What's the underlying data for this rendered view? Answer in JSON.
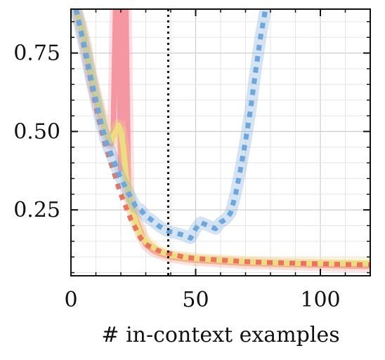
{
  "chart_data": {
    "type": "line",
    "title": "",
    "xlabel": "# in-context examples",
    "ylabel": "",
    "xlim": [
      0,
      120
    ],
    "ylim": [
      0.04,
      0.89
    ],
    "xticks": [
      {
        "value": 0,
        "label": "0"
      },
      {
        "value": 50,
        "label": "50"
      },
      {
        "value": 100,
        "label": "100"
      }
    ],
    "yticks": [
      {
        "value": 0.25,
        "label": "0.25"
      },
      {
        "value": 0.5,
        "label": "0.50"
      },
      {
        "value": 0.75,
        "label": "0.75"
      }
    ],
    "grid": true,
    "legend": "none",
    "vline": {
      "x": 39,
      "style": "dotted",
      "color": "#111111"
    },
    "series": [
      {
        "color": "#f497a3",
        "style": "solid",
        "band": true,
        "x": [
          2,
          4,
          6,
          8,
          10,
          12,
          14,
          16,
          17,
          18,
          19,
          20,
          21,
          22,
          23,
          24,
          26,
          28,
          30,
          33,
          36,
          40,
          45,
          50,
          60,
          70,
          80,
          90,
          100,
          110,
          120
        ],
        "y": [
          0.89,
          0.84,
          0.77,
          0.68,
          0.61,
          0.55,
          0.5,
          0.46,
          0.5,
          0.92,
          0.92,
          0.38,
          0.9,
          0.9,
          0.3,
          0.27,
          0.22,
          0.18,
          0.14,
          0.12,
          0.11,
          0.1,
          0.095,
          0.09,
          0.085,
          0.08,
          0.078,
          0.076,
          0.074,
          0.072,
          0.07
        ]
      },
      {
        "color": "#eedc82",
        "style": "solid",
        "band": true,
        "x": [
          2,
          4,
          6,
          8,
          10,
          12,
          14,
          16,
          18,
          19,
          20,
          21,
          22,
          24,
          26,
          28,
          30,
          35,
          40,
          50,
          60,
          70,
          80,
          90,
          100,
          110,
          120
        ],
        "y": [
          0.89,
          0.84,
          0.77,
          0.69,
          0.62,
          0.56,
          0.5,
          0.47,
          0.5,
          0.52,
          0.5,
          0.45,
          0.36,
          0.27,
          0.21,
          0.17,
          0.15,
          0.12,
          0.105,
          0.095,
          0.09,
          0.085,
          0.082,
          0.08,
          0.08,
          0.08,
          0.08
        ]
      },
      {
        "color": "#e8745f",
        "style": "dashed",
        "band": false,
        "x": [
          2,
          4,
          6,
          8,
          10,
          12,
          14,
          16,
          18,
          20,
          22,
          24,
          26,
          28,
          30,
          35,
          40,
          45,
          50,
          60,
          70,
          80,
          90,
          100,
          110,
          120
        ],
        "y": [
          0.89,
          0.82,
          0.74,
          0.66,
          0.58,
          0.51,
          0.45,
          0.4,
          0.35,
          0.3,
          0.26,
          0.22,
          0.19,
          0.16,
          0.14,
          0.12,
          0.11,
          0.1,
          0.095,
          0.09,
          0.085,
          0.082,
          0.08,
          0.078,
          0.076,
          0.075
        ]
      },
      {
        "color": "#6fa6dc",
        "style": "dashed",
        "band": true,
        "x": [
          2,
          4,
          6,
          8,
          10,
          12,
          14,
          16,
          18,
          20,
          22,
          24,
          26,
          28,
          30,
          32,
          35,
          38,
          40,
          45,
          48,
          50,
          52,
          55,
          58,
          60,
          62,
          64,
          66,
          68,
          70,
          72,
          74,
          76,
          78
        ],
        "y": [
          0.89,
          0.82,
          0.75,
          0.67,
          0.6,
          0.53,
          0.47,
          0.43,
          0.39,
          0.35,
          0.32,
          0.29,
          0.26,
          0.25,
          0.23,
          0.22,
          0.2,
          0.185,
          0.18,
          0.17,
          0.16,
          0.19,
          0.21,
          0.2,
          0.19,
          0.21,
          0.22,
          0.24,
          0.3,
          0.38,
          0.47,
          0.57,
          0.69,
          0.8,
          0.89
        ]
      }
    ]
  }
}
